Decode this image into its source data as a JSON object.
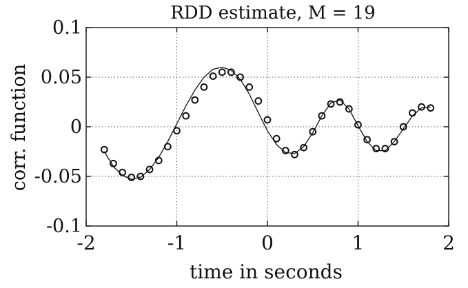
{
  "chart_data": {
    "type": "scatter",
    "title": "RDD estimate, M = 19",
    "xlabel": "time in seconds",
    "ylabel": "corr. function",
    "xlim": [
      -2,
      2
    ],
    "ylim": [
      -0.1,
      0.1
    ],
    "x_ticks": [
      -2,
      -1,
      0,
      1,
      2
    ],
    "x_tick_labels": [
      "-2",
      "-1",
      "0",
      "1",
      "2"
    ],
    "y_ticks": [
      -0.1,
      -0.05,
      0,
      0.05,
      0.1
    ],
    "y_tick_labels": [
      "-0.1",
      "-0.05",
      "0",
      "0.05",
      "0.1"
    ],
    "grid": true,
    "grid_style": "dotted",
    "series": [
      {
        "kind": "line",
        "color": "#111111",
        "x": [
          -1.8,
          -1.7,
          -1.6,
          -1.5,
          -1.4,
          -1.3,
          -1.2,
          -1.1,
          -1.0,
          -0.9,
          -0.8,
          -0.7,
          -0.6,
          -0.5,
          -0.4,
          -0.3,
          -0.2,
          -0.1,
          0.0,
          0.1,
          0.2,
          0.3,
          0.4,
          0.5,
          0.6,
          0.7,
          0.8,
          0.9,
          1.0,
          1.1,
          1.2,
          1.3,
          1.4,
          1.5,
          1.6,
          1.7,
          1.8
        ],
        "y": [
          -0.025,
          -0.04,
          -0.049,
          -0.053,
          -0.051,
          -0.043,
          -0.031,
          -0.015,
          0.003,
          0.021,
          0.037,
          0.05,
          0.058,
          0.06,
          0.057,
          0.048,
          0.033,
          0.014,
          -0.004,
          -0.018,
          -0.026,
          -0.027,
          -0.02,
          -0.006,
          0.011,
          0.024,
          0.027,
          0.018,
          0.001,
          -0.015,
          -0.024,
          -0.024,
          -0.015,
          -0.002,
          0.011,
          0.019,
          0.02
        ]
      },
      {
        "kind": "scatter",
        "marker": "circle",
        "color": "#111111",
        "x": [
          -1.8,
          -1.7,
          -1.6,
          -1.5,
          -1.4,
          -1.3,
          -1.2,
          -1.1,
          -1.0,
          -0.9,
          -0.8,
          -0.7,
          -0.6,
          -0.5,
          -0.4,
          -0.3,
          -0.2,
          -0.1,
          0.0,
          0.1,
          0.2,
          0.3,
          0.4,
          0.5,
          0.6,
          0.7,
          0.8,
          0.9,
          1.0,
          1.1,
          1.2,
          1.3,
          1.4,
          1.5,
          1.6,
          1.7,
          1.8
        ],
        "y": [
          -0.023,
          -0.037,
          -0.046,
          -0.051,
          -0.05,
          -0.043,
          -0.034,
          -0.02,
          -0.004,
          0.011,
          0.027,
          0.04,
          0.051,
          0.055,
          0.055,
          0.05,
          0.04,
          0.026,
          0.007,
          -0.012,
          -0.024,
          -0.028,
          -0.021,
          -0.005,
          0.011,
          0.023,
          0.025,
          0.018,
          0.002,
          -0.013,
          -0.022,
          -0.022,
          -0.015,
          0.0,
          0.014,
          0.02,
          0.019
        ]
      }
    ]
  }
}
